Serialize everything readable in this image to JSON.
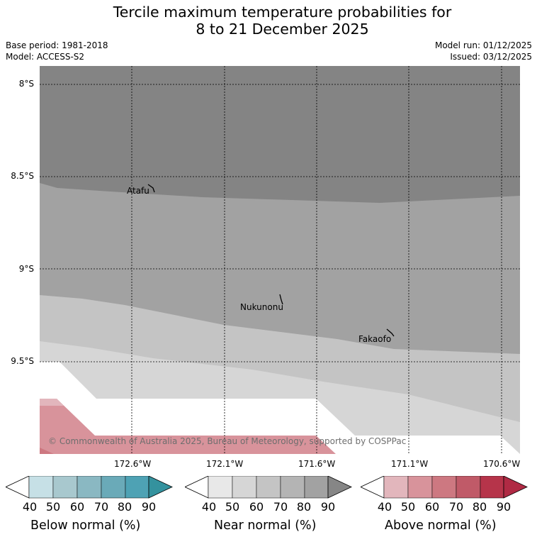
{
  "title_line1": "Tercile maximum temperature probabilities for",
  "title_line2": "8 to 21 December 2025",
  "base_period": "Base period: 1981-2018",
  "model": "Model: ACCESS-S2",
  "model_run": "Model run: 01/12/2025",
  "issued": "Issued: 03/12/2025",
  "lat_labels": [
    "8°S",
    "8.5°S",
    "9°S",
    "9.5°S"
  ],
  "lon_labels": [
    "172.6°W",
    "172.1°W",
    "171.6°W",
    "171.1°W",
    "170.6°W"
  ],
  "places": [
    "Atafu",
    "Nukunonu",
    "Fakaofo"
  ],
  "copyright": "© Commonwealth of Australia 2025, Bureau of Meteorology, supported by COSPPac",
  "colorbars": [
    {
      "label": "Below normal (%)",
      "ticks": [
        "40",
        "50",
        "60",
        "70",
        "80",
        "90"
      ],
      "colors": [
        "#c6e0e6",
        "#a8c8ce",
        "#8ab8c2",
        "#6aaab8",
        "#4ea2b4",
        "#34929e"
      ]
    },
    {
      "label": "Near normal (%)",
      "ticks": [
        "40",
        "50",
        "60",
        "70",
        "80",
        "90"
      ],
      "colors": [
        "#e8e8e8",
        "#d6d6d6",
        "#c4c4c4",
        "#b4b4b4",
        "#a2a2a2",
        "#868686"
      ]
    },
    {
      "label": "Above normal (%)",
      "ticks": [
        "40",
        "50",
        "60",
        "70",
        "80",
        "90"
      ],
      "colors": [
        "#e2b6bc",
        "#d8939b",
        "#cd7881",
        "#c05a68",
        "#b6344a",
        "#b02a44"
      ]
    }
  ],
  "map_colors": {
    "near_90": "#848484",
    "near_80": "#a2a2a2",
    "near_70": "#c4c4c4",
    "near_60": "#d6d6d6",
    "above_50": "#d8939b",
    "above_60": "#cd7881"
  }
}
